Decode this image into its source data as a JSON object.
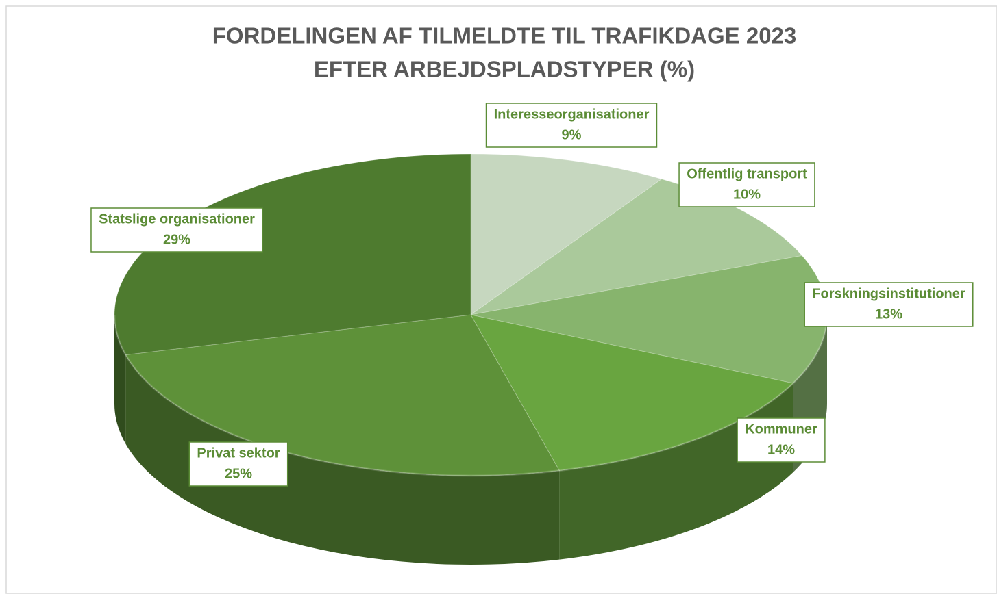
{
  "chart_data": {
    "type": "pie3d",
    "title": [
      "FORDELINGEN AF TILMELDTE TIL TRAFIKDAGE 2023",
      "EFTER ARBEJDSPLADSTYPER (%)"
    ],
    "categories": [
      "Interesseorganisationer",
      "Offentlig transport",
      "Forskningsinstitutioner",
      "Kommuner",
      "Privat sektor",
      "Statslige organisationer"
    ],
    "values": [
      9,
      10,
      13,
      14,
      25,
      29
    ],
    "value_labels": [
      "9%",
      "10%",
      "13%",
      "14%",
      "25%",
      "29%"
    ],
    "colors": [
      "#c6d7bf",
      "#aac99b",
      "#87b46d",
      "#69a540",
      "#5e9139",
      "#4e7b2f"
    ],
    "label_color": "#5b8c35"
  }
}
